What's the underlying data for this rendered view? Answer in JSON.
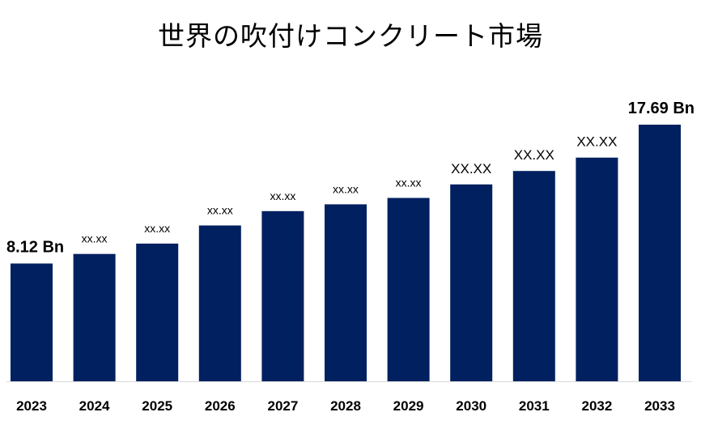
{
  "chart_data": {
    "type": "bar",
    "title": "世界の吹付けコンクリート市場",
    "categories": [
      "2023",
      "2024",
      "2025",
      "2026",
      "2027",
      "2028",
      "2029",
      "2030",
      "2031",
      "2032",
      "2033"
    ],
    "values": [
      8.12,
      8.78,
      9.49,
      10.74,
      11.73,
      12.2,
      12.64,
      13.57,
      14.5,
      15.42,
      17.69
    ],
    "data_labels": [
      "8.12 Bn",
      "xx.xx",
      "xx.xx",
      "xx.xx",
      "xx.xx",
      "xx.xx",
      "xx.xx",
      "XX.XX",
      "XX.XX",
      "XX.XX",
      "17.69 Bn"
    ],
    "bar_color": "#002060",
    "ylim": [
      0,
      17.69
    ],
    "xlabel": "",
    "ylabel": "",
    "grid": false,
    "legend": "none"
  }
}
